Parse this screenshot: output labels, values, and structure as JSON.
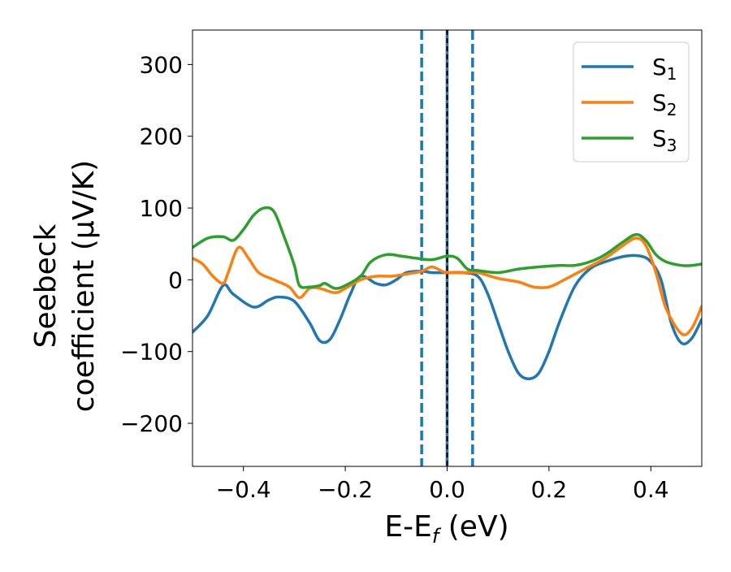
{
  "chart_data": {
    "type": "line",
    "title": "",
    "xlabel": "E-E",
    "xlabel_sub": "f",
    "xlabel_unit": " (eV)",
    "ylabel_line1": "Seebeck",
    "ylabel_line2": "coefficient  (μV/K)",
    "xlim": [
      -0.5,
      0.5
    ],
    "ylim": [
      -260,
      348
    ],
    "xticks": [
      -0.4,
      -0.2,
      0.0,
      0.2,
      0.4
    ],
    "xtick_labels": [
      "−0.4",
      "−0.2",
      "0.0",
      "0.2",
      "0.4"
    ],
    "yticks": [
      -200,
      -100,
      0,
      100,
      200,
      300
    ],
    "ytick_labels": [
      "−200",
      "−100",
      "0",
      "100",
      "200",
      "300"
    ],
    "grid": false,
    "legend_position": "top-right",
    "vertical_lines": [
      {
        "x": -0.05,
        "style": "dashed",
        "color": "#1f77b4"
      },
      {
        "x": 0.0,
        "style": "solid",
        "color": "#1f77b4"
      },
      {
        "x": 0.0,
        "style": "dashed",
        "color": "#000000"
      },
      {
        "x": 0.05,
        "style": "dashed",
        "color": "#1f77b4"
      }
    ],
    "series": [
      {
        "name": "S",
        "sub": "1",
        "color": "#1f77b4",
        "points": [
          [
            -0.5,
            -73
          ],
          [
            -0.47,
            -50
          ],
          [
            -0.44,
            -8
          ],
          [
            -0.42,
            -20
          ],
          [
            -0.38,
            -38
          ],
          [
            -0.35,
            -28
          ],
          [
            -0.33,
            -24
          ],
          [
            -0.3,
            -30
          ],
          [
            -0.27,
            -60
          ],
          [
            -0.25,
            -85
          ],
          [
            -0.23,
            -83
          ],
          [
            -0.21,
            -55
          ],
          [
            -0.19,
            -20
          ],
          [
            -0.17,
            5
          ],
          [
            -0.14,
            -5
          ],
          [
            -0.12,
            -7
          ],
          [
            -0.1,
            0
          ],
          [
            -0.08,
            10
          ],
          [
            -0.05,
            12
          ],
          [
            -0.03,
            10
          ],
          [
            0.0,
            10
          ],
          [
            0.03,
            10
          ],
          [
            0.06,
            5
          ],
          [
            0.08,
            -20
          ],
          [
            0.1,
            -60
          ],
          [
            0.12,
            -100
          ],
          [
            0.14,
            -130
          ],
          [
            0.16,
            -138
          ],
          [
            0.18,
            -130
          ],
          [
            0.2,
            -100
          ],
          [
            0.22,
            -60
          ],
          [
            0.25,
            -10
          ],
          [
            0.28,
            15
          ],
          [
            0.31,
            25
          ],
          [
            0.35,
            33
          ],
          [
            0.38,
            33
          ],
          [
            0.4,
            25
          ],
          [
            0.42,
            0
          ],
          [
            0.44,
            -60
          ],
          [
            0.46,
            -88
          ],
          [
            0.48,
            -82
          ],
          [
            0.5,
            -55
          ]
        ]
      },
      {
        "name": "S",
        "sub": "2",
        "color": "#ff7f0e",
        "points": [
          [
            -0.5,
            30
          ],
          [
            -0.48,
            22
          ],
          [
            -0.46,
            5
          ],
          [
            -0.44,
            -5
          ],
          [
            -0.43,
            10
          ],
          [
            -0.41,
            45
          ],
          [
            -0.39,
            30
          ],
          [
            -0.37,
            10
          ],
          [
            -0.34,
            0
          ],
          [
            -0.31,
            -10
          ],
          [
            -0.29,
            -25
          ],
          [
            -0.27,
            -12
          ],
          [
            -0.25,
            -12
          ],
          [
            -0.22,
            -18
          ],
          [
            -0.2,
            -12
          ],
          [
            -0.17,
            0
          ],
          [
            -0.14,
            5
          ],
          [
            -0.11,
            5
          ],
          [
            -0.08,
            8
          ],
          [
            -0.05,
            12
          ],
          [
            -0.03,
            18
          ],
          [
            -0.01,
            12
          ],
          [
            0.0,
            10
          ],
          [
            0.03,
            10
          ],
          [
            0.06,
            10
          ],
          [
            0.1,
            2
          ],
          [
            0.14,
            -3
          ],
          [
            0.17,
            -10
          ],
          [
            0.2,
            -10
          ],
          [
            0.23,
            0
          ],
          [
            0.27,
            15
          ],
          [
            0.31,
            30
          ],
          [
            0.34,
            45
          ],
          [
            0.37,
            58
          ],
          [
            0.39,
            48
          ],
          [
            0.41,
            10
          ],
          [
            0.43,
            -40
          ],
          [
            0.46,
            -75
          ],
          [
            0.48,
            -68
          ],
          [
            0.5,
            -37
          ]
        ]
      },
      {
        "name": "S",
        "sub": "3",
        "color": "#2ca02c",
        "points": [
          [
            -0.5,
            45
          ],
          [
            -0.47,
            58
          ],
          [
            -0.44,
            60
          ],
          [
            -0.42,
            55
          ],
          [
            -0.4,
            70
          ],
          [
            -0.38,
            90
          ],
          [
            -0.36,
            100
          ],
          [
            -0.34,
            95
          ],
          [
            -0.32,
            60
          ],
          [
            -0.3,
            20
          ],
          [
            -0.29,
            -8
          ],
          [
            -0.27,
            -10
          ],
          [
            -0.25,
            -8
          ],
          [
            -0.24,
            -5
          ],
          [
            -0.22,
            -12
          ],
          [
            -0.2,
            -8
          ],
          [
            -0.17,
            5
          ],
          [
            -0.15,
            25
          ],
          [
            -0.12,
            35
          ],
          [
            -0.09,
            33
          ],
          [
            -0.06,
            30
          ],
          [
            -0.03,
            28
          ],
          [
            0.0,
            33
          ],
          [
            0.02,
            30
          ],
          [
            0.04,
            15
          ],
          [
            0.06,
            13
          ],
          [
            0.1,
            10
          ],
          [
            0.14,
            15
          ],
          [
            0.18,
            18
          ],
          [
            0.22,
            20
          ],
          [
            0.25,
            20
          ],
          [
            0.28,
            25
          ],
          [
            0.31,
            35
          ],
          [
            0.34,
            50
          ],
          [
            0.37,
            63
          ],
          [
            0.39,
            55
          ],
          [
            0.41,
            35
          ],
          [
            0.43,
            25
          ],
          [
            0.46,
            20
          ],
          [
            0.48,
            20
          ],
          [
            0.5,
            22
          ]
        ]
      }
    ]
  }
}
